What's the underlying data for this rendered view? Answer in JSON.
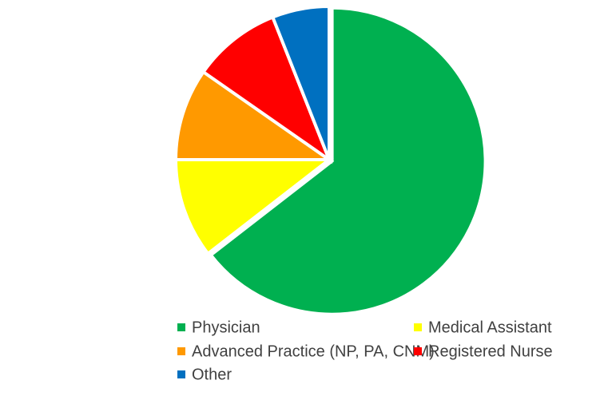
{
  "chart_data": {
    "type": "pie",
    "categories": [
      "Physician",
      "Medical Assistant",
      "Advanced Practice (NP, PA, CNM)",
      "Registered Nurse",
      "Other"
    ],
    "values": [
      64.5,
      10.5,
      9.7,
      9.3,
      6.0
    ],
    "colors": [
      "#00b050",
      "#ffff00",
      "#ff9900",
      "#ff0000",
      "#0070c0"
    ],
    "legend": "bottom"
  }
}
